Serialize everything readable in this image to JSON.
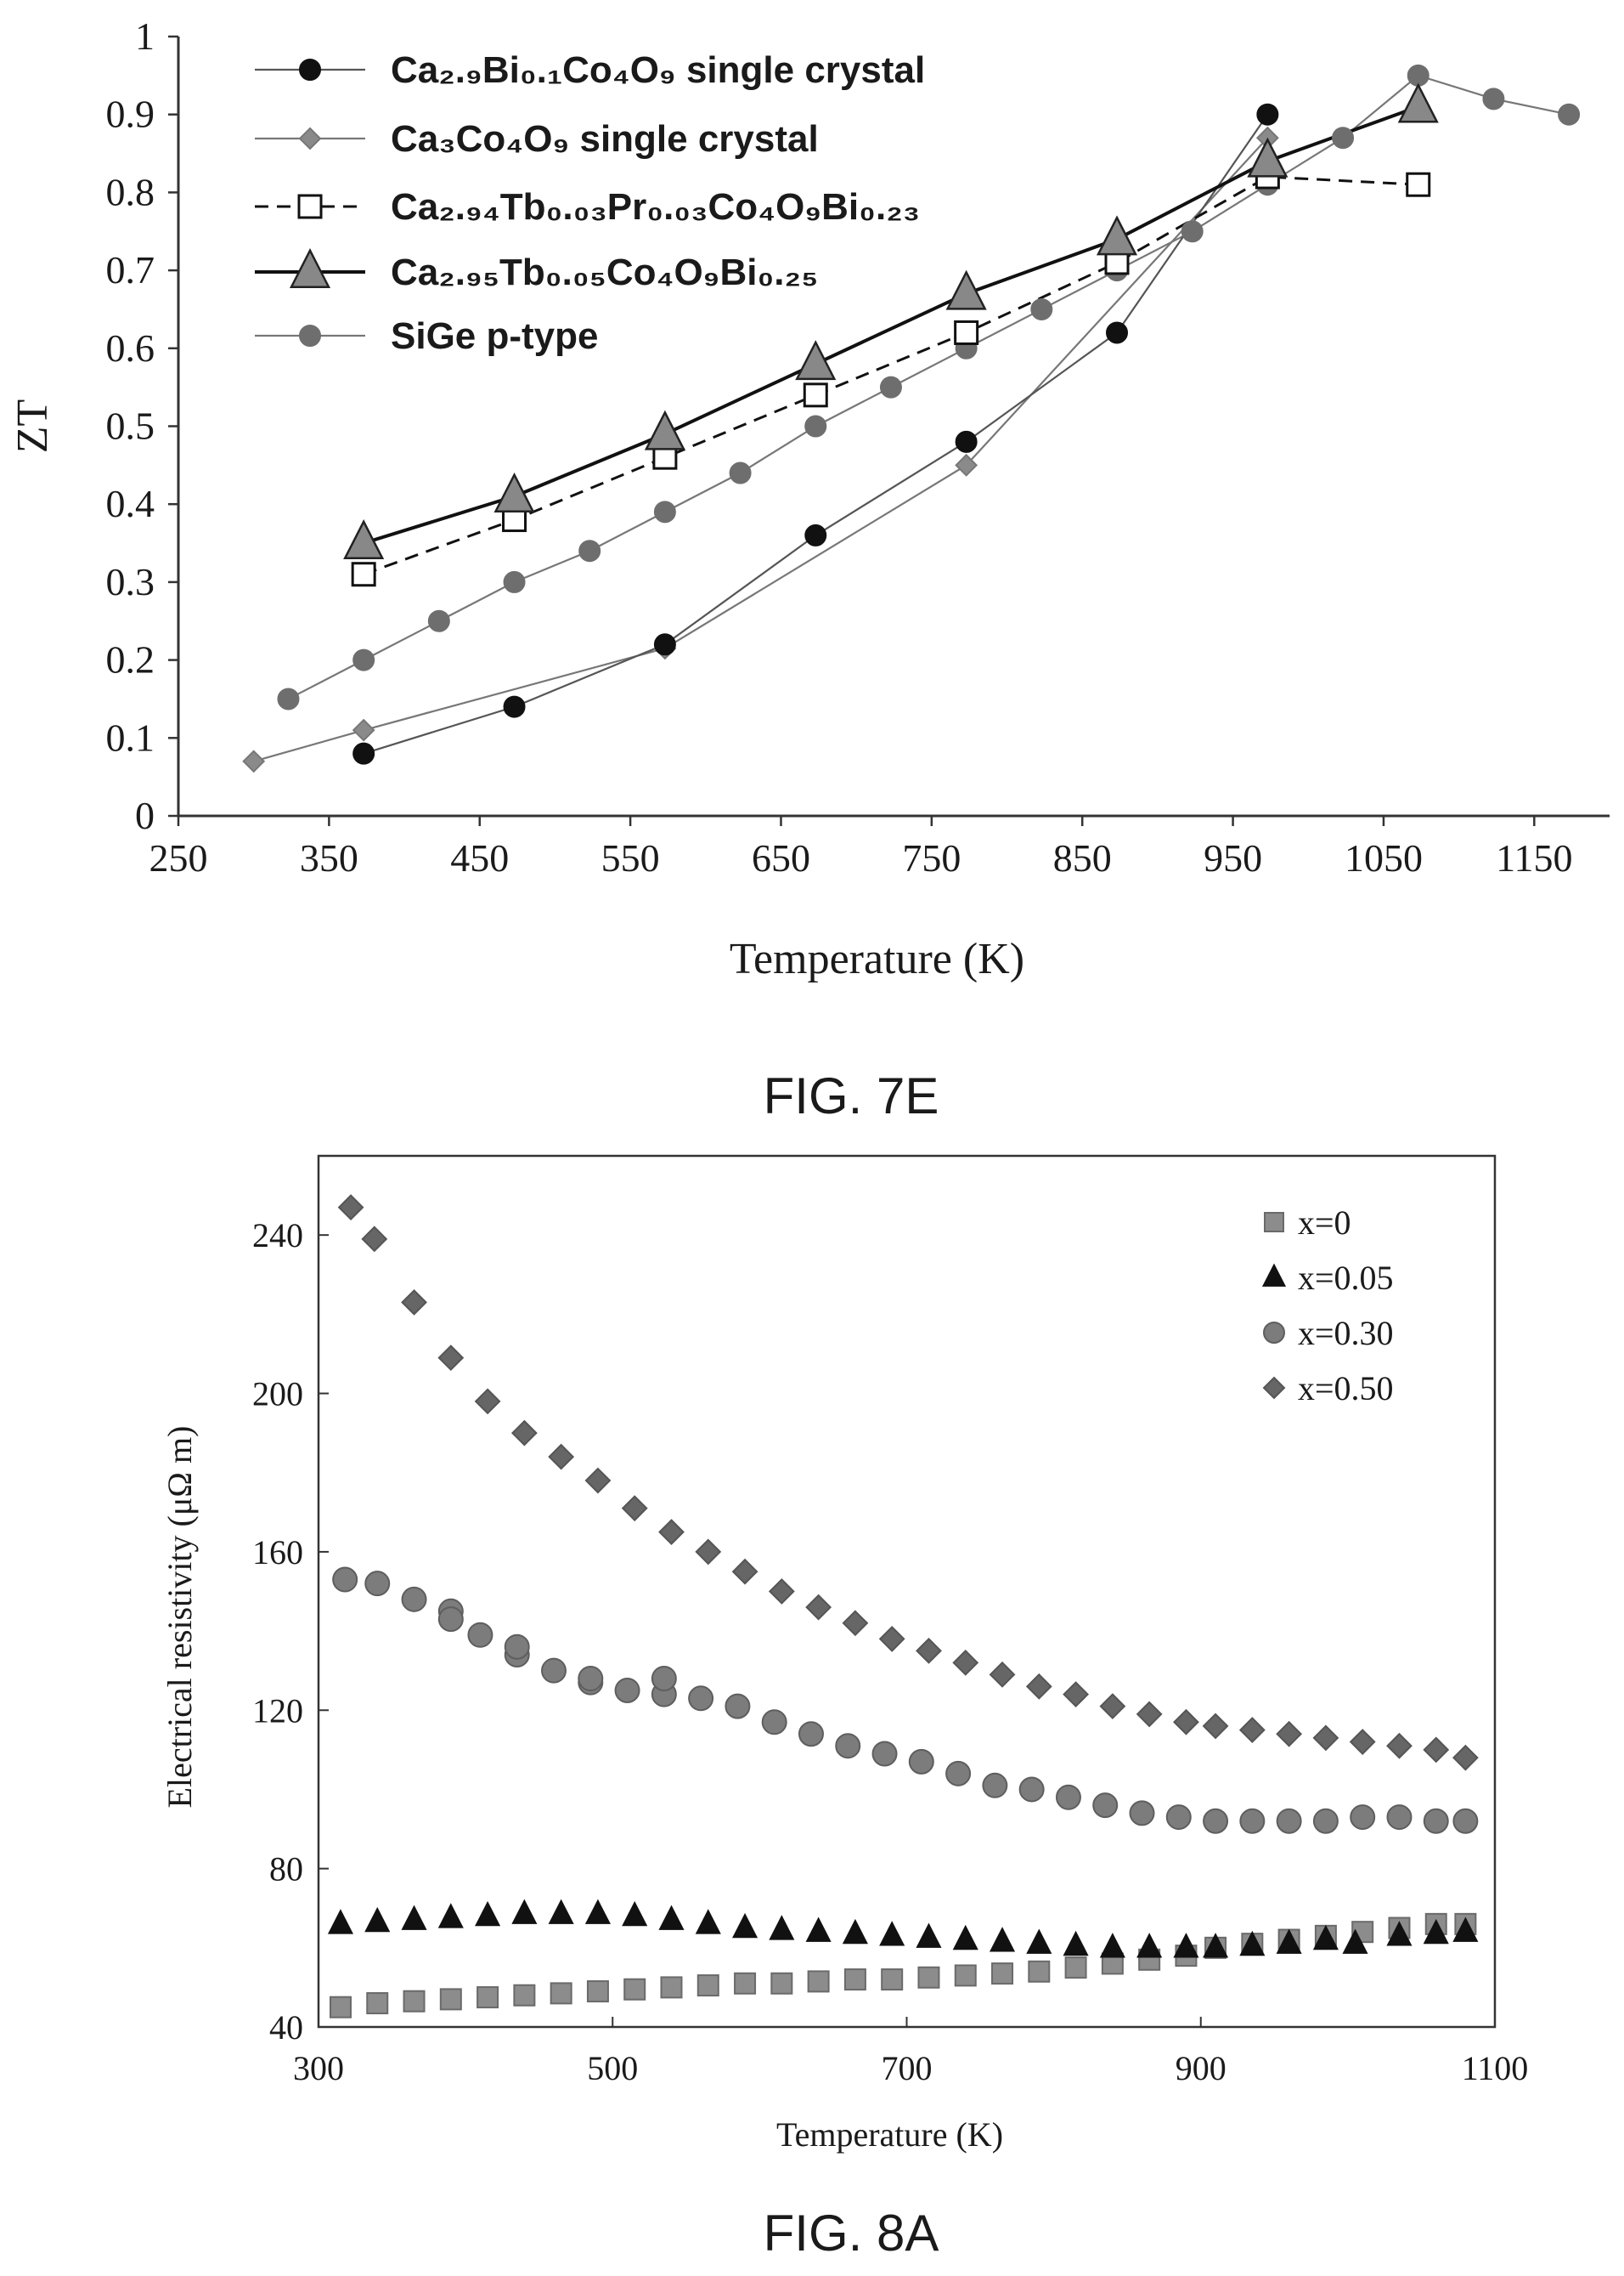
{
  "figures": [
    {
      "caption": "FIG. 7E"
    },
    {
      "caption": "FIG. 8A"
    }
  ],
  "chart_data": [
    {
      "type": "line",
      "xlabel": "Temperature (K)",
      "ylabel": "ZT",
      "xlim": [
        250,
        1200
      ],
      "ylim": [
        0,
        1
      ],
      "xticks": [
        250,
        350,
        450,
        550,
        650,
        750,
        850,
        950,
        1050,
        1150
      ],
      "yticks": [
        0,
        0.1,
        0.2,
        0.3,
        0.4,
        0.5,
        0.6,
        0.7,
        0.8,
        0.9,
        1
      ],
      "ytick_labels": [
        "0",
        "0.1",
        "0.2",
        "0.3",
        "0.4",
        "0.5",
        "0.6",
        "0.7",
        "0.8",
        "0.9",
        "1"
      ],
      "legend_position": "top-left",
      "grid": false,
      "series": [
        {
          "name": "Ca₂.₉Bi₀.₁Co₄O₉ single crystal",
          "marker": "circle",
          "marker_color": "#111111",
          "line_color": "#555555",
          "dash": "solid",
          "x": [
            373,
            473,
            573,
            673,
            773,
            873,
            973
          ],
          "y": [
            0.08,
            0.14,
            0.22,
            0.36,
            0.48,
            0.62,
            0.9
          ]
        },
        {
          "name": "Ca₃Co₄O₉ single crystal",
          "marker": "diamond",
          "marker_color": "#8a8a8a",
          "line_color": "#777777",
          "dash": "solid",
          "x": [
            300,
            373,
            573,
            773,
            973
          ],
          "y": [
            0.07,
            0.11,
            0.215,
            0.45,
            0.87
          ]
        },
        {
          "name": "Ca₂.₉₄Tb₀.₀₃Pr₀.₀₃Co₄O₉Bi₀.₂₃",
          "marker": "square-open",
          "marker_color": "#ffffff",
          "line_color": "#111111",
          "dash": "dashed",
          "x": [
            373,
            473,
            573,
            673,
            773,
            873,
            973,
            1073
          ],
          "y": [
            0.31,
            0.38,
            0.46,
            0.54,
            0.62,
            0.71,
            0.82,
            0.81
          ]
        },
        {
          "name": "Ca₂.₉₅Tb₀.₀₅Co₄O₉Bi₀.₂₅",
          "marker": "triangle",
          "marker_color": "#888888",
          "line_color": "#111111",
          "dash": "solid",
          "x": [
            373,
            473,
            573,
            673,
            773,
            873,
            973,
            1073
          ],
          "y": [
            0.35,
            0.41,
            0.49,
            0.58,
            0.67,
            0.74,
            0.84,
            0.91
          ]
        },
        {
          "name": "SiGe p-type",
          "marker": "circle",
          "marker_color": "#6e6e6e",
          "line_color": "#777777",
          "dash": "solid",
          "x": [
            323,
            373,
            423,
            473,
            523,
            573,
            623,
            673,
            723,
            773,
            823,
            873,
            923,
            973,
            1023,
            1073,
            1123,
            1173
          ],
          "y": [
            0.15,
            0.2,
            0.25,
            0.3,
            0.34,
            0.39,
            0.44,
            0.5,
            0.55,
            0.6,
            0.65,
            0.7,
            0.75,
            0.81,
            0.87,
            0.95,
            0.92,
            0.9
          ]
        }
      ]
    },
    {
      "type": "scatter",
      "xlabel": "Temperature (K)",
      "ylabel": "Electrical resistivity (μΩ m)",
      "xlim": [
        300,
        1100
      ],
      "ylim": [
        40,
        260
      ],
      "xticks": [
        300,
        500,
        700,
        900,
        1100
      ],
      "yticks": [
        40,
        80,
        120,
        160,
        200,
        240
      ],
      "legend_position": "top-right",
      "grid": false,
      "series": [
        {
          "name": "x=0",
          "marker": "square",
          "marker_color": "#8c8c8c",
          "x": [
            315,
            340,
            365,
            390,
            415,
            440,
            465,
            490,
            515,
            540,
            565,
            590,
            615,
            640,
            665,
            690,
            715,
            740,
            765,
            790,
            815,
            840,
            865,
            890,
            910,
            935,
            960,
            985,
            1010,
            1035,
            1060,
            1080
          ],
          "y": [
            45,
            46,
            46.5,
            47,
            47.5,
            48,
            48.5,
            49,
            49.5,
            50,
            50.5,
            51,
            51,
            51.5,
            52,
            52,
            52.5,
            53,
            53.5,
            54,
            55,
            56,
            57,
            58,
            60,
            61,
            62,
            63,
            64,
            65,
            66,
            66
          ]
        },
        {
          "name": "x=0.05",
          "marker": "triangle",
          "marker_color": "#111111",
          "x": [
            315,
            340,
            365,
            390,
            415,
            440,
            465,
            490,
            515,
            540,
            565,
            590,
            615,
            640,
            665,
            690,
            715,
            740,
            765,
            790,
            815,
            840,
            865,
            890,
            910,
            935,
            960,
            985,
            1005,
            1035,
            1060,
            1080
          ],
          "y": [
            66,
            66.5,
            67,
            67.5,
            68,
            68.5,
            68.5,
            68.5,
            68,
            67,
            66,
            65,
            64.5,
            64,
            63.5,
            63,
            62.5,
            62,
            61.5,
            61,
            60.5,
            60,
            60,
            60,
            60,
            60.5,
            61,
            62,
            61,
            63,
            63.5,
            64
          ]
        },
        {
          "name": "x=0.30",
          "marker": "circle",
          "marker_color": "#7c7c7c",
          "x": [
            318,
            340,
            365,
            390,
            410,
            435,
            460,
            485,
            510,
            535,
            560,
            585,
            610,
            635,
            660,
            685,
            710,
            735,
            760,
            785,
            810,
            835,
            860,
            885,
            910,
            935,
            960,
            985,
            1010,
            1035,
            1060,
            1080,
            390,
            435,
            485,
            535
          ],
          "y": [
            153,
            152,
            148,
            145,
            139,
            134,
            130,
            127,
            125,
            124,
            123,
            121,
            117,
            114,
            111,
            109,
            107,
            104,
            101,
            100,
            98,
            96,
            94,
            93,
            92,
            92,
            92,
            92,
            93,
            93,
            92,
            92,
            143,
            136,
            128,
            128
          ]
        },
        {
          "name": "x=0.50",
          "marker": "diamond",
          "marker_color": "#666666",
          "x": [
            322,
            338,
            365,
            390,
            415,
            440,
            465,
            490,
            515,
            540,
            565,
            590,
            615,
            640,
            665,
            690,
            715,
            740,
            765,
            790,
            815,
            840,
            865,
            890,
            910,
            935,
            960,
            985,
            1010,
            1035,
            1060,
            1080
          ],
          "y": [
            247,
            239,
            223,
            209,
            198,
            190,
            184,
            178,
            171,
            165,
            160,
            155,
            150,
            146,
            142,
            138,
            135,
            132,
            129,
            126,
            124,
            121,
            119,
            117,
            116,
            115,
            114,
            113,
            112,
            111,
            110,
            108
          ]
        }
      ]
    }
  ]
}
